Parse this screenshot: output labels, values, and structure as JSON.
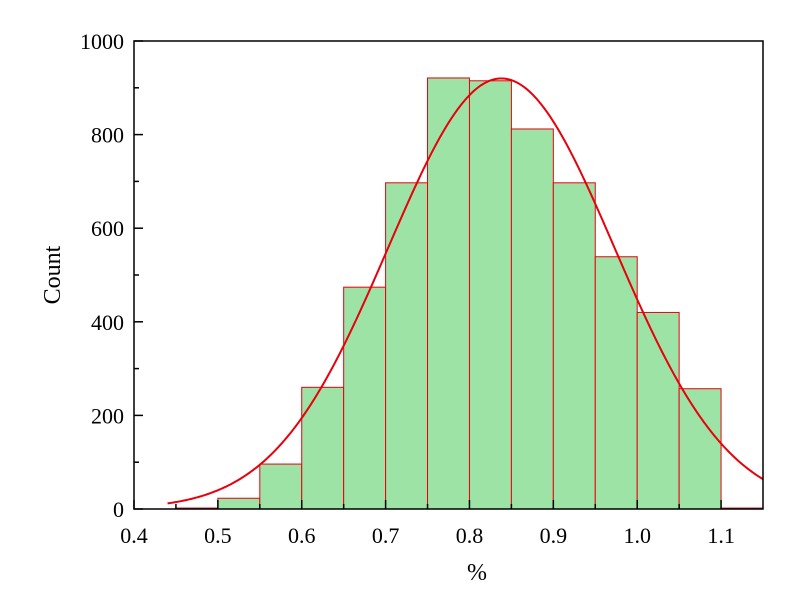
{
  "chart_data": {
    "type": "bar",
    "xlabel": "%",
    "ylabel": "Count",
    "xlim": [
      0.4,
      1.15
    ],
    "ylim": [
      0,
      1000
    ],
    "x_ticks": [
      0.4,
      0.5,
      0.6,
      0.7,
      0.8,
      0.9,
      1.0,
      1.1
    ],
    "x_tick_labels": [
      "0.4",
      "0.5",
      "0.6",
      "0.7",
      "0.8",
      "0.9",
      "1.0",
      "1.1"
    ],
    "y_ticks": [
      0,
      200,
      400,
      600,
      800,
      1000
    ],
    "y_tick_labels": [
      "0",
      "200",
      "400",
      "600",
      "800",
      "1000"
    ],
    "bin_width": 0.05,
    "bins": [
      {
        "start": 0.45,
        "count": 2
      },
      {
        "start": 0.5,
        "count": 23
      },
      {
        "start": 0.55,
        "count": 96
      },
      {
        "start": 0.6,
        "count": 260
      },
      {
        "start": 0.65,
        "count": 474
      },
      {
        "start": 0.7,
        "count": 697
      },
      {
        "start": 0.75,
        "count": 921
      },
      {
        "start": 0.8,
        "count": 915
      },
      {
        "start": 0.85,
        "count": 812
      },
      {
        "start": 0.9,
        "count": 697
      },
      {
        "start": 0.95,
        "count": 539
      },
      {
        "start": 1.0,
        "count": 420
      },
      {
        "start": 1.05,
        "count": 257
      },
      {
        "start": 1.1,
        "count": 2
      }
    ],
    "fit_curve": {
      "type": "normal",
      "peak": 920,
      "mean": 0.838,
      "sd": 0.135,
      "x_range": [
        0.44,
        1.15
      ]
    },
    "grid": false,
    "colors": {
      "bar_fill": "#9de3a6",
      "bar_edge": "#e8000b",
      "curve": "#e8000b"
    }
  }
}
